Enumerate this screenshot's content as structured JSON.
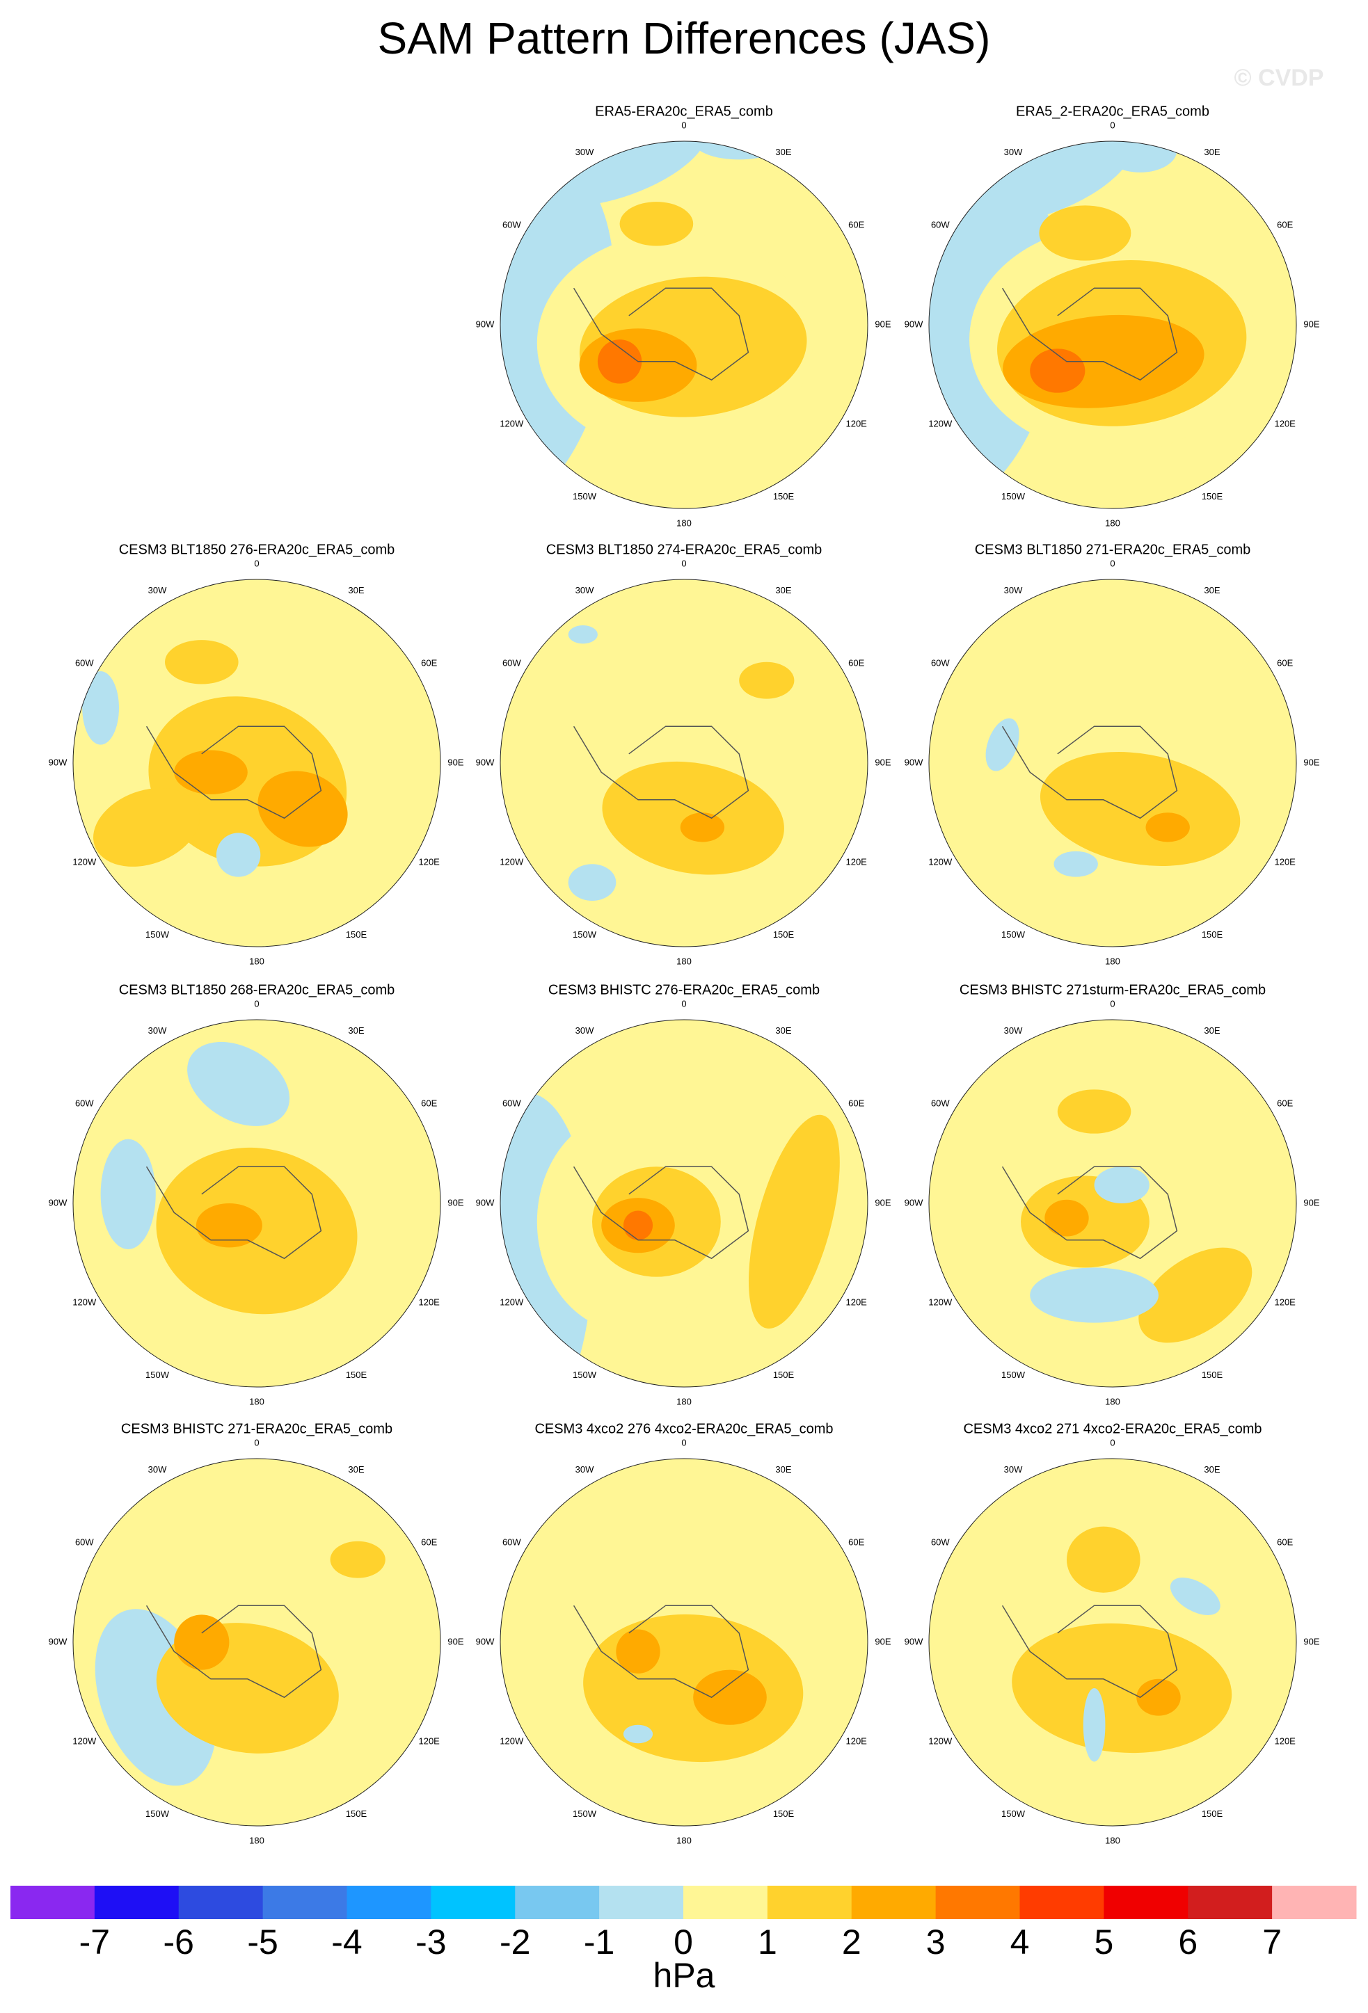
{
  "title": "SAM Pattern Differences (JAS)",
  "watermark": "© CVDP",
  "longitude_labels": [
    "0",
    "30E",
    "60E",
    "90E",
    "120E",
    "150E",
    "180",
    "150W",
    "120W",
    "90W",
    "60W",
    "30W"
  ],
  "panels": [
    {
      "title": "ERA5-ERA20c_ERA5_comb"
    },
    {
      "title": "ERA5_2-ERA20c_ERA5_comb"
    },
    {
      "title": "CESM3 BLT1850 276-ERA20c_ERA5_comb"
    },
    {
      "title": "CESM3 BLT1850 274-ERA20c_ERA5_comb"
    },
    {
      "title": "CESM3 BLT1850 271-ERA20c_ERA5_comb"
    },
    {
      "title": "CESM3 BLT1850 268-ERA20c_ERA5_comb"
    },
    {
      "title": "CESM3 BHISTC 276-ERA20c_ERA5_comb"
    },
    {
      "title": "CESM3 BHISTC 271sturm-ERA20c_ERA5_comb"
    },
    {
      "title": "CESM3 BHISTC 271-ERA20c_ERA5_comb"
    },
    {
      "title": "CESM3 4xco2 276 4xco2-ERA20c_ERA5_comb"
    },
    {
      "title": "CESM3 4xco2 271 4xco2-ERA20c_ERA5_comb"
    }
  ],
  "colorbar": {
    "levels": [
      -7,
      -6,
      -5,
      -4,
      -3,
      -2,
      -1,
      0,
      1,
      2,
      3,
      4,
      5,
      6,
      7
    ],
    "colors": [
      "#8a28f0",
      "#1e0ff5",
      "#2d4be0",
      "#3c7ae6",
      "#1e96ff",
      "#00c3ff",
      "#78c8f0",
      "#b4e1f0",
      "#fff695",
      "#ffd22d",
      "#ffaa00",
      "#ff7800",
      "#ff3c00",
      "#f00000",
      "#d21e1e",
      "#ffb4b4"
    ],
    "unit": "hPa"
  }
}
